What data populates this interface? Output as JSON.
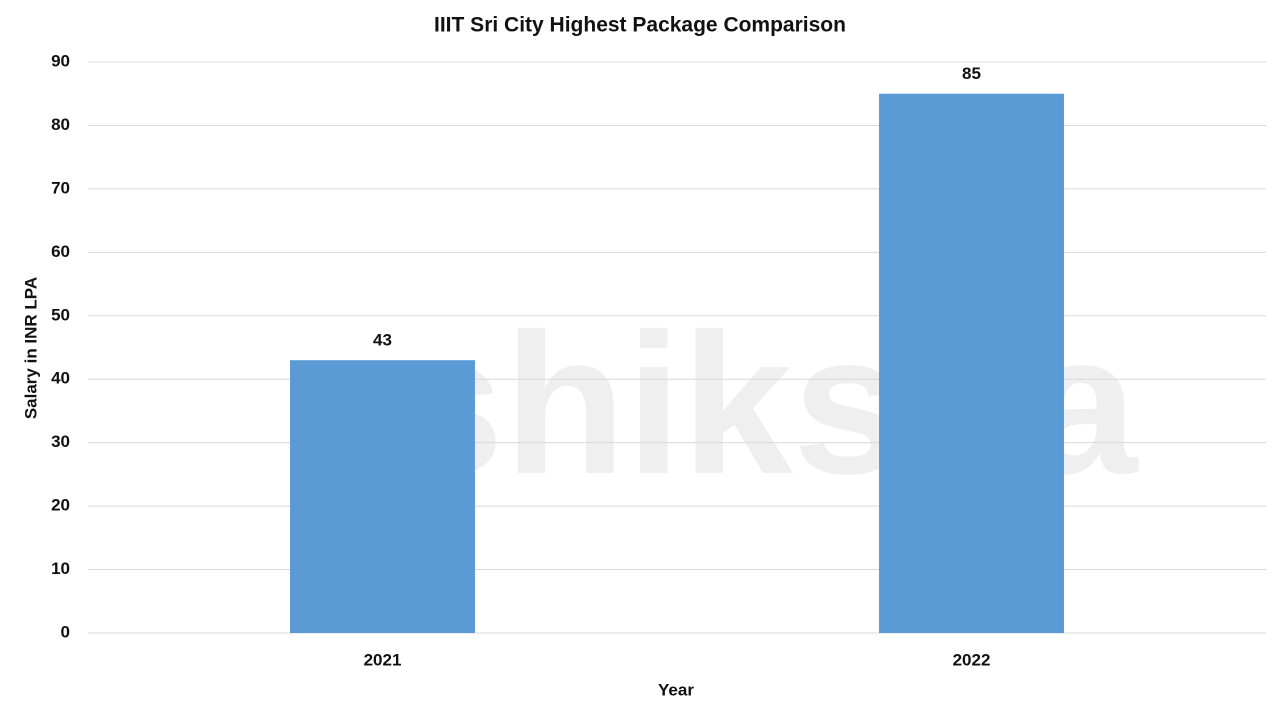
{
  "chart_data": {
    "type": "bar",
    "title": "IIIT Sri City Highest Package Comparison",
    "x_label": "Year",
    "y_label": "Salary in INR LPA",
    "categories": [
      "2021",
      "2022"
    ],
    "values": [
      43,
      85
    ],
    "color": "#5b9bd5",
    "ylim": [
      0,
      90
    ],
    "yticks": [
      0,
      10,
      20,
      30,
      40,
      50,
      60,
      70,
      80,
      90
    ],
    "grid": true,
    "watermark": "shiksha"
  }
}
